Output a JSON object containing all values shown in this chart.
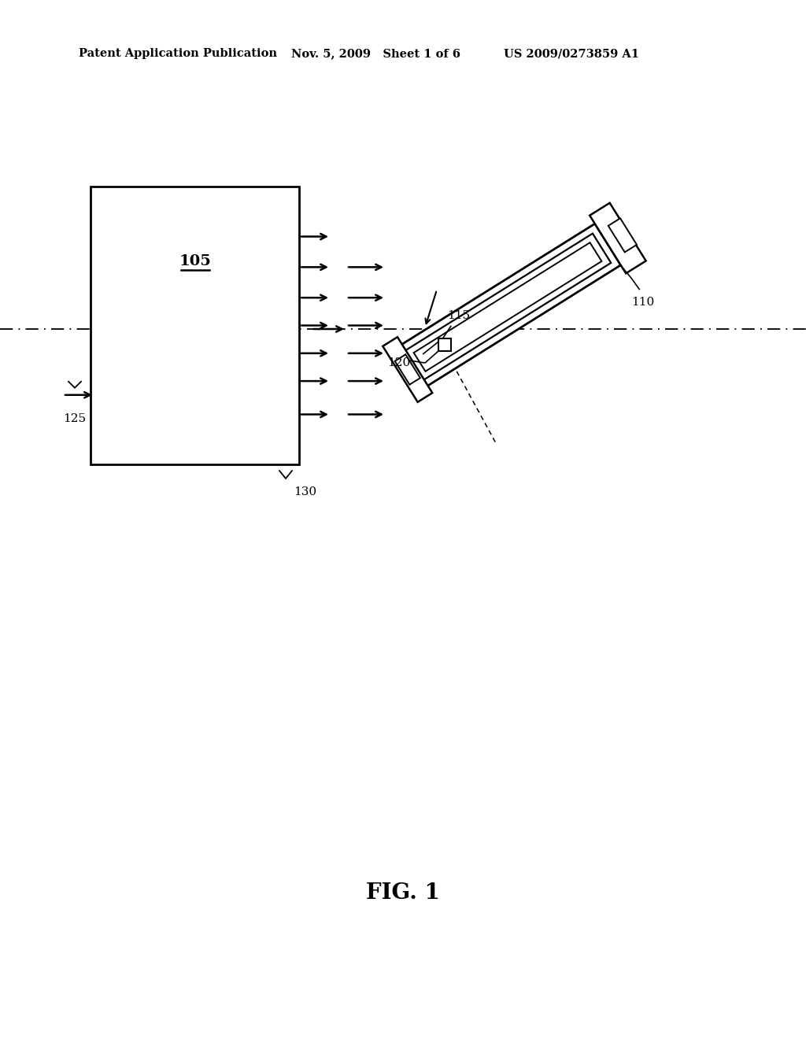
{
  "background_color": "#ffffff",
  "header_left": "Patent Application Publication",
  "header_mid": "Nov. 5, 2009   Sheet 1 of 6",
  "header_right": "US 2009/0273859 A1",
  "fig_label": "FIG. 1",
  "box_label": "105",
  "label_115": "115",
  "label_110": "110",
  "label_120": "120",
  "label_125": "125",
  "label_130": "130"
}
